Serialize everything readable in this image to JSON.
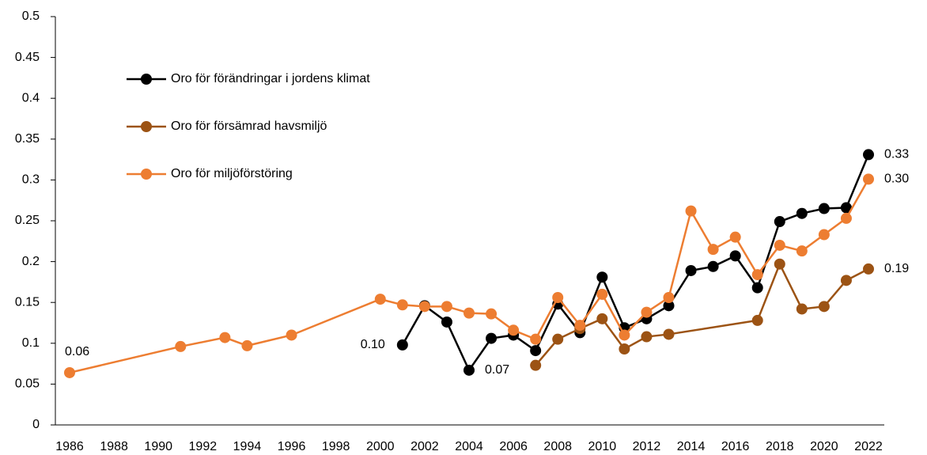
{
  "chart_data": {
    "type": "line",
    "xlim": [
      1986,
      2022
    ],
    "xticks": [
      1986,
      1988,
      1990,
      1992,
      1994,
      1996,
      1998,
      2000,
      2002,
      2004,
      2006,
      2008,
      2010,
      2012,
      2014,
      2016,
      2018,
      2020,
      2022
    ],
    "ylim": [
      0,
      0.5
    ],
    "yticks": [
      0,
      0.05,
      0.1,
      0.15,
      0.2,
      0.25,
      0.3,
      0.35,
      0.4,
      0.45,
      0.5
    ],
    "grid": false,
    "series": [
      {
        "name": "Oro för förändringar i jordens klimat",
        "color": "#000000",
        "x": [
          2001,
          2002,
          2003,
          2004,
          2005,
          2006,
          2007,
          2008,
          2009,
          2010,
          2011,
          2012,
          2013,
          2014,
          2015,
          2016,
          2017,
          2018,
          2019,
          2020,
          2021,
          2022
        ],
        "values": [
          0.098,
          0.146,
          0.126,
          0.067,
          0.106,
          0.11,
          0.091,
          0.148,
          0.113,
          0.181,
          0.119,
          0.13,
          0.146,
          0.189,
          0.194,
          0.207,
          0.168,
          0.249,
          0.259,
          0.265,
          0.266,
          0.331
        ],
        "value_labels": [
          "0.10",
          null,
          null,
          "0.07",
          null,
          null,
          null,
          null,
          null,
          null,
          null,
          null,
          null,
          null,
          null,
          null,
          null,
          null,
          null,
          null,
          null,
          "0.33"
        ]
      },
      {
        "name": "Oro för försämrad havsmiljö",
        "color": "#9c5314",
        "x": [
          2007,
          2008,
          2009,
          2010,
          2011,
          2012,
          2013,
          2017,
          2018,
          2019,
          2020,
          2021,
          2022
        ],
        "values": [
          0.073,
          0.105,
          0.118,
          0.13,
          0.093,
          0.108,
          0.111,
          0.128,
          0.197,
          0.142,
          0.145,
          0.177,
          0.191
        ],
        "value_labels": [
          null,
          null,
          null,
          null,
          null,
          null,
          null,
          null,
          null,
          null,
          null,
          null,
          "0.19"
        ]
      },
      {
        "name": "Oro för miljöförstöring",
        "color": "#ed7d31",
        "x": [
          1986,
          1991,
          1993,
          1994,
          1996,
          2000,
          2001,
          2002,
          2003,
          2004,
          2005,
          2006,
          2007,
          2008,
          2009,
          2010,
          2011,
          2012,
          2013,
          2014,
          2015,
          2016,
          2017,
          2018,
          2019,
          2020,
          2021,
          2022
        ],
        "values": [
          0.064,
          0.096,
          0.107,
          0.097,
          0.11,
          0.154,
          0.147,
          0.145,
          0.145,
          0.137,
          0.136,
          0.116,
          0.105,
          0.156,
          0.122,
          0.16,
          0.11,
          0.138,
          0.156,
          0.262,
          0.215,
          0.23,
          0.184,
          0.22,
          0.213,
          0.233,
          0.253,
          0.301
        ],
        "value_labels": [
          "0.06",
          null,
          null,
          null,
          null,
          null,
          null,
          null,
          null,
          null,
          null,
          null,
          null,
          null,
          null,
          null,
          null,
          null,
          null,
          null,
          null,
          null,
          null,
          null,
          null,
          null,
          null,
          "0.30"
        ]
      }
    ]
  }
}
